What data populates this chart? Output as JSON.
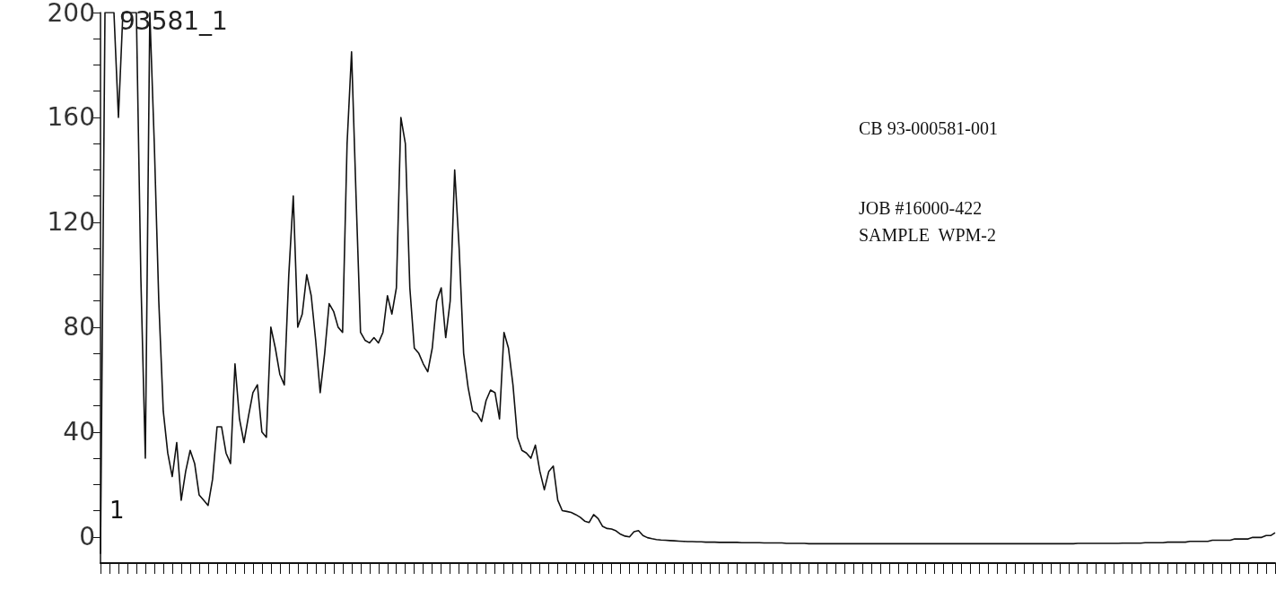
{
  "chart_data": {
    "type": "line",
    "title": "93581_1",
    "annotations": [
      "CB 93-000581-001",
      "JOB #16000-422",
      "SAMPLE  WPM-2",
      "1"
    ],
    "categories": [
      null,
      null,
      null,
      null,
      null,
      null,
      null,
      null,
      null,
      null,
      null,
      null,
      null,
      null,
      null,
      null,
      null,
      null,
      null,
      null,
      null,
      null,
      null,
      null,
      null,
      null,
      null,
      null,
      null,
      null,
      null,
      null,
      null,
      null,
      null,
      null,
      null,
      null,
      null,
      null,
      null,
      null,
      null,
      null,
      null,
      null,
      null,
      null,
      null,
      null,
      null,
      null,
      null,
      null,
      null,
      null,
      null,
      null,
      null,
      null,
      null,
      null,
      null,
      null,
      null,
      null,
      null,
      null,
      null,
      null,
      null,
      null,
      null,
      null,
      null,
      null,
      null,
      null,
      null,
      null,
      null,
      null,
      null,
      null,
      null,
      null,
      null,
      null,
      null,
      null,
      null,
      null,
      null,
      null,
      null,
      null,
      null,
      null,
      null,
      null,
      null,
      null,
      null,
      null,
      null,
      null,
      null,
      null,
      null,
      null,
      null,
      null,
      null,
      null,
      null,
      null,
      null,
      null,
      null,
      null,
      null,
      null,
      null,
      null,
      null,
      null,
      null,
      null,
      null,
      null,
      null,
      null,
      null,
      null,
      null,
      null,
      null,
      null,
      null,
      null,
      null,
      null,
      null,
      null,
      null,
      null,
      null,
      null,
      null,
      null,
      null,
      null,
      null,
      null,
      null,
      null,
      null,
      null,
      null,
      null,
      null,
      null,
      null,
      null,
      null,
      null,
      null,
      null,
      null,
      null,
      null,
      null,
      null,
      null,
      null,
      null,
      null,
      null,
      null,
      null,
      null,
      null,
      null,
      null,
      null,
      null,
      null,
      null,
      null,
      null,
      null,
      null,
      null,
      null,
      null,
      null,
      null,
      null,
      null,
      null,
      null,
      null,
      null,
      null,
      null,
      null,
      null,
      null,
      null,
      null,
      null,
      null,
      null,
      null,
      null,
      null,
      null,
      null,
      null,
      null,
      null,
      null,
      null,
      null,
      null,
      null,
      null,
      null,
      null,
      null,
      null,
      null,
      null,
      null,
      null,
      null,
      null,
      null,
      null,
      null,
      null,
      null,
      null,
      null,
      null,
      null,
      null,
      null,
      null,
      null,
      null,
      null,
      null,
      null,
      null,
      null,
      null,
      null,
      null,
      null,
      null,
      null,
      null
    ],
    "series": [
      {
        "color": "#111111",
        "values": [
          -6.5,
          200,
          200,
          200,
          160,
          200,
          200,
          200,
          200,
          99,
          30,
          200,
          150,
          90,
          48,
          32,
          23,
          36,
          14,
          25,
          33,
          28,
          16,
          14,
          12,
          22,
          42,
          42,
          32,
          28,
          66,
          45,
          36,
          46,
          55,
          58,
          40,
          38,
          80,
          72,
          62,
          58,
          100,
          130,
          80,
          85,
          100,
          92,
          75,
          55,
          70,
          89,
          86,
          80,
          78,
          150,
          185,
          130,
          78,
          75,
          74,
          76,
          74,
          78,
          92,
          85,
          95,
          160,
          150,
          95,
          72,
          70,
          66,
          63,
          72,
          90,
          95,
          76,
          90,
          140,
          110,
          70,
          57,
          48,
          47,
          44,
          52,
          56,
          55,
          45,
          78,
          72,
          58,
          38,
          33,
          32,
          30,
          35,
          25,
          18,
          25,
          27,
          14,
          10,
          9.7,
          9.3,
          8.5,
          7.5,
          6,
          5.5,
          8.5,
          7,
          4,
          3.2,
          3,
          2.3,
          1,
          0.3,
          0,
          2,
          2.4,
          0.5,
          -0.3,
          -0.7,
          -1,
          -1.2,
          -1.3,
          -1.4,
          -1.5,
          -1.6,
          -1.7,
          -1.8,
          -1.8,
          -1.9,
          -1.9,
          -2,
          -2,
          -2,
          -2.1,
          -2.1,
          -2.1,
          -2.1,
          -2.1,
          -2.2,
          -2.2,
          -2.2,
          -2.2,
          -2.2,
          -2.3,
          -2.3,
          -2.3,
          -2.3,
          -2.3,
          -2.5,
          -2.5,
          -2.5,
          -2.5,
          -2.5,
          -2.6,
          -2.6,
          -2.6,
          -2.6,
          -2.6,
          -2.6,
          -2.6,
          -2.6,
          -2.6,
          -2.6,
          -2.6,
          -2.6,
          -2.6,
          -2.6,
          -2.6,
          -2.6,
          -2.6,
          -2.6,
          -2.6,
          -2.6,
          -2.6,
          -2.6,
          -2.6,
          -2.6,
          -2.6,
          -2.6,
          -2.6,
          -2.6,
          -2.6,
          -2.6,
          -2.6,
          -2.6,
          -2.6,
          -2.6,
          -2.6,
          -2.6,
          -2.6,
          -2.6,
          -2.6,
          -2.6,
          -2.6,
          -2.6,
          -2.6,
          -2.6,
          -2.6,
          -2.6,
          -2.6,
          -2.6,
          -2.6,
          -2.6,
          -2.6,
          -2.6,
          -2.6,
          -2.6,
          -2.6,
          -2.6,
          -2.6,
          -2.6,
          -2.6,
          -2.6,
          -2.5,
          -2.5,
          -2.5,
          -2.5,
          -2.5,
          -2.5,
          -2.5,
          -2.5,
          -2.5,
          -2.5,
          -2.4,
          -2.4,
          -2.4,
          -2.4,
          -2.4,
          -2.2,
          -2.2,
          -2.2,
          -2.2,
          -2.2,
          -2,
          -2,
          -2,
          -2,
          -2,
          -1.7,
          -1.7,
          -1.7,
          -1.7,
          -1.7,
          -1.3,
          -1.3,
          -1.3,
          -1.3,
          -1.3,
          -0.8,
          -0.8,
          -0.8,
          -0.8,
          -0.2,
          -0.2,
          -0.2,
          0.5,
          0.5,
          1.6
        ]
      }
    ],
    "ylim": [
      -10,
      200
    ],
    "yticks": [
      0,
      40,
      80,
      120,
      160,
      200
    ],
    "tick_labels": "y",
    "grid": false
  }
}
